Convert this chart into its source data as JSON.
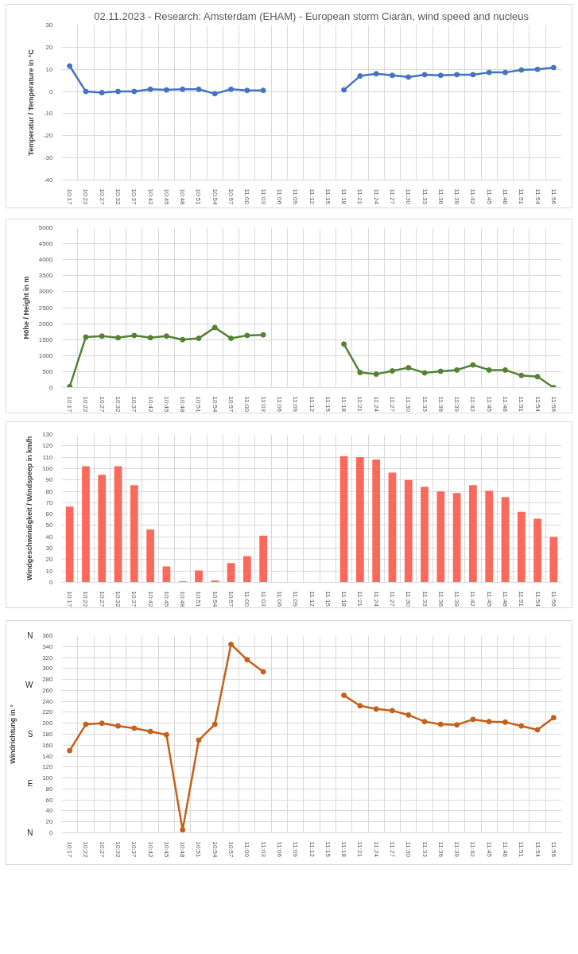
{
  "chart_data": [
    {
      "type": "line",
      "title": "02.11.2023 - Research: Amsterdam (EHAM) - European storm Ciarán, wind speed and nucleus",
      "ylabel": "Temperatur / Temperature in °C",
      "categories": [
        "10:17",
        "10:22",
        "10:27",
        "10:32",
        "10:37",
        "10:42",
        "10:45",
        "10:48",
        "10:51",
        "10:54",
        "10:57",
        "11:00",
        "11:03",
        "11:06",
        "11:09",
        "11:12",
        "11:15",
        "11:18",
        "11:21",
        "11:24",
        "11:27",
        "11:30",
        "11:33",
        "11:36",
        "11:39",
        "11:42",
        "11:45",
        "11:48",
        "11:51",
        "11:54",
        "11:56"
      ],
      "series": [
        {
          "color": "#4472c4",
          "values": [
            11.5,
            0,
            -0.5,
            0,
            0,
            1,
            0.7,
            1,
            1,
            -1,
            1,
            0.5,
            0.5,
            null,
            null,
            null,
            null,
            0.7,
            7,
            8,
            7.3,
            6.5,
            7.6,
            7.3,
            7.6,
            7.6,
            8.6,
            8.6,
            9.7,
            10,
            10.8
          ]
        }
      ],
      "ylim": [
        -40,
        30
      ],
      "yticks": [
        -40,
        -30,
        -20,
        -10,
        0,
        10,
        20,
        30
      ],
      "grid": true,
      "marker": "circle"
    },
    {
      "type": "line",
      "ylabel": "Höhe / Height in m",
      "categories": [
        "10:17",
        "10:22",
        "10:27",
        "10:32",
        "10:37",
        "10:42",
        "10:45",
        "10:48",
        "10:51",
        "10:54",
        "10:57",
        "11:00",
        "11:03",
        "11:06",
        "11:09",
        "11:12",
        "11:15",
        "11:18",
        "11:21",
        "11:24",
        "11:27",
        "11:30",
        "11:33",
        "11:36",
        "11:39",
        "11:42",
        "11:45",
        "11:48",
        "11:51",
        "11:54",
        "11:56"
      ],
      "series": [
        {
          "color": "#548235",
          "values": [
            30,
            1580,
            1610,
            1560,
            1630,
            1560,
            1610,
            1500,
            1540,
            1880,
            1540,
            1630,
            1650,
            null,
            null,
            null,
            null,
            1360,
            470,
            420,
            520,
            620,
            460,
            510,
            550,
            710,
            550,
            550,
            380,
            340,
            0
          ]
        }
      ],
      "ylim": [
        0,
        5000
      ],
      "yticks": [
        0,
        500,
        1000,
        1500,
        2000,
        2500,
        3000,
        3500,
        4000,
        4500,
        5000
      ],
      "grid": true,
      "marker": "circle"
    },
    {
      "type": "bar",
      "ylabel": "Windgeschwindigkeit / Windspeep in km/h",
      "categories": [
        "10:17",
        "10:22",
        "10:27",
        "10:32",
        "10:37",
        "10:42",
        "10:45",
        "10:48",
        "10:51",
        "10:54",
        "10:57",
        "11:00",
        "11:03",
        "11:06",
        "11:09",
        "11:12",
        "11:15",
        "11:18",
        "11:21",
        "11:24",
        "11:27",
        "11:30",
        "11:33",
        "11:36",
        "11:39",
        "11:42",
        "11:45",
        "11:48",
        "11:51",
        "11:54",
        "11:56"
      ],
      "series": [
        {
          "color": "#f96a5a",
          "values": [
            66.5,
            102,
            94.5,
            102,
            85.5,
            46.5,
            14,
            0.8,
            10.5,
            1.5,
            17,
            23,
            41,
            null,
            null,
            null,
            null,
            111,
            110,
            108,
            96.5,
            90,
            84,
            80,
            78.5,
            85.5,
            80.5,
            75,
            62,
            56,
            40
          ]
        }
      ],
      "ylim": [
        0,
        130
      ],
      "yticks": [
        0,
        10,
        20,
        30,
        40,
        50,
        60,
        70,
        80,
        90,
        100,
        110,
        120,
        130
      ],
      "grid": true
    },
    {
      "type": "line",
      "ylabel": "Windrichtung in °",
      "categories": [
        "10:17",
        "10:22",
        "10:27",
        "10:32",
        "10:37",
        "10:42",
        "10:45",
        "10:48",
        "10:51",
        "10:54",
        "10:57",
        "11:00",
        "11:03",
        "11:06",
        "11:09",
        "11:12",
        "11:15",
        "11:18",
        "11:21",
        "11:24",
        "11:27",
        "11:30",
        "11:33",
        "11:36",
        "11:39",
        "11:42",
        "11:45",
        "11:48",
        "11:51",
        "11:54",
        "11:56"
      ],
      "series": [
        {
          "color": "#c65f1a",
          "values": [
            150,
            198,
            200,
            195,
            191,
            185,
            179,
            5,
            169,
            198,
            344,
            316,
            294,
            null,
            null,
            null,
            null,
            251,
            232,
            226,
            223,
            215,
            203,
            198,
            197,
            207,
            203,
            202,
            195,
            188,
            210
          ]
        }
      ],
      "ylim": [
        0,
        360
      ],
      "yticks": [
        0,
        20,
        40,
        60,
        80,
        100,
        120,
        140,
        160,
        180,
        200,
        220,
        240,
        260,
        280,
        300,
        320,
        340,
        360
      ],
      "annotations": [
        "N",
        "E",
        "S",
        "W",
        "N"
      ],
      "grid": true,
      "marker": "circle"
    }
  ]
}
